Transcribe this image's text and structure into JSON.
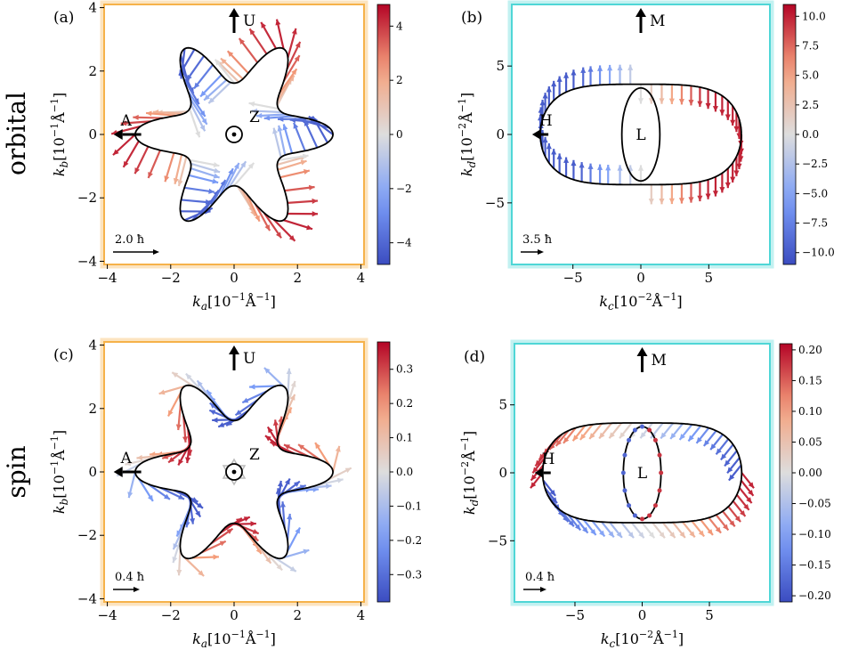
{
  "row_labels": [
    "orbital",
    "spin"
  ],
  "chart_data": [
    {
      "type": "scatter",
      "panel": "(a)",
      "frame_color": "#f6b24a",
      "xlabel_html": "k_a[10^{-1}Å^{-1}]",
      "xlabel_base": "k",
      "xlabel_sub": "a",
      "xlabel_unit": "[10",
      "xlabel_exp": "−1",
      "xlabel_tail": "Å",
      "xlabel_tail_exp": "−1",
      "xlabel_close": "]",
      "ylabel_base": "k",
      "ylabel_sub": "b",
      "ylabel_unit": "[10",
      "ylabel_exp": "−1",
      "ylabel_tail": "Å",
      "ylabel_tail_exp": "−1",
      "ylabel_close": "]",
      "xlim": [
        -4.1,
        4.1
      ],
      "ylim": [
        -4.1,
        4.1
      ],
      "xticks": [
        -4,
        -2,
        0,
        2,
        4
      ],
      "yticks": [
        -4,
        -2,
        0,
        2,
        4
      ],
      "xtick_labels": [
        "−4",
        "−2",
        "0",
        "2",
        "4"
      ],
      "ytick_labels": [
        "−4",
        "−2",
        "0",
        "2",
        "4"
      ],
      "curve": {
        "kind": "star",
        "r0": 2.25,
        "amp": 0.75,
        "lobes": 6
      },
      "center_symbol": "odot",
      "center_label": "Z",
      "up_label": "U",
      "left_label": "A",
      "scale_label": "2.0 ħ",
      "colorbar": {
        "min": -4.8,
        "max": 4.8,
        "ticks": [
          4,
          2,
          0,
          -2,
          -4
        ],
        "tick_labels": [
          "4",
          "2",
          "0",
          "−2",
          "−4"
        ]
      },
      "vector_mode": "orbital_star"
    },
    {
      "type": "scatter",
      "panel": "(b)",
      "frame_color": "#4fd6d6",
      "xlabel_base": "k",
      "xlabel_sub": "c",
      "xlabel_unit": "[10",
      "xlabel_exp": "−2",
      "xlabel_tail": "Å",
      "xlabel_tail_exp": "−1",
      "xlabel_close": "]",
      "ylabel_base": "k",
      "ylabel_sub": "d",
      "ylabel_unit": "[10",
      "ylabel_exp": "−2",
      "ylabel_tail": "Å",
      "ylabel_tail_exp": "−1",
      "ylabel_close": "]",
      "xlim": [
        -9.5,
        9.5
      ],
      "ylim": [
        -9.5,
        9.5
      ],
      "xticks": [
        -5,
        0,
        5
      ],
      "yticks": [
        -5,
        0,
        5
      ],
      "xtick_labels": [
        "−5",
        "0",
        "5"
      ],
      "ytick_labels": [
        "−5",
        "0",
        "5"
      ],
      "curve": {
        "kind": "peanut"
      },
      "inner_label": "L",
      "up_label": "M",
      "left_label": "H",
      "scale_label": "3.5 ħ",
      "colorbar": {
        "min": -11,
        "max": 11,
        "ticks": [
          10,
          7.5,
          5,
          2.5,
          0,
          -2.5,
          -5,
          -7.5,
          -10
        ],
        "tick_labels": [
          "10.0",
          "7.5",
          "5.0",
          "2.5",
          "0.0",
          "−2.5",
          "−5.0",
          "−7.5",
          "−10.0"
        ]
      },
      "vector_mode": "orbital_peanut"
    },
    {
      "type": "scatter",
      "panel": "(c)",
      "frame_color": "#f6b24a",
      "xlabel_base": "k",
      "xlabel_sub": "a",
      "xlabel_unit": "[10",
      "xlabel_exp": "−1",
      "xlabel_tail": "Å",
      "xlabel_tail_exp": "−1",
      "xlabel_close": "]",
      "ylabel_base": "k",
      "ylabel_sub": "b",
      "ylabel_unit": "[10",
      "ylabel_exp": "−1",
      "ylabel_tail": "Å",
      "ylabel_tail_exp": "−1",
      "ylabel_close": "]",
      "xlim": [
        -4.1,
        4.1
      ],
      "ylim": [
        -4.1,
        4.1
      ],
      "xticks": [
        -4,
        -2,
        0,
        2,
        4
      ],
      "yticks": [
        -4,
        -2,
        0,
        2,
        4
      ],
      "xtick_labels": [
        "−4",
        "−2",
        "0",
        "2",
        "4"
      ],
      "ytick_labels": [
        "−4",
        "−2",
        "0",
        "2",
        "4"
      ],
      "curve": {
        "kind": "star",
        "r0": 2.25,
        "amp": 0.75,
        "lobes": 6
      },
      "center_symbol": "odot",
      "center_label": "Z",
      "up_label": "U",
      "left_label": "A",
      "scale_label": "0.4 ħ",
      "colorbar": {
        "min": -0.38,
        "max": 0.38,
        "ticks": [
          0.3,
          0.2,
          0.1,
          0.0,
          -0.1,
          -0.2,
          -0.3
        ],
        "tick_labels": [
          "0.3",
          "0.2",
          "0.1",
          "0.0",
          "−0.1",
          "−0.2",
          "−0.3"
        ]
      },
      "vector_mode": "spin_star"
    },
    {
      "type": "scatter",
      "panel": "(d)",
      "frame_color": "#4fd6d6",
      "xlabel_base": "k",
      "xlabel_sub": "c",
      "xlabel_unit": "[10",
      "xlabel_exp": "−2",
      "xlabel_tail": "Å",
      "xlabel_tail_exp": "−1",
      "xlabel_close": "]",
      "ylabel_base": "k",
      "ylabel_sub": "d",
      "ylabel_unit": "[10",
      "ylabel_exp": "−2",
      "ylabel_tail": "Å",
      "ylabel_tail_exp": "−1",
      "ylabel_close": "]",
      "xlim": [
        -9.5,
        9.5
      ],
      "ylim": [
        -9.5,
        9.5
      ],
      "xticks": [
        -5,
        0,
        5
      ],
      "yticks": [
        -5,
        0,
        5
      ],
      "xtick_labels": [
        "−5",
        "0",
        "5"
      ],
      "ytick_labels": [
        "−5",
        "0",
        "5"
      ],
      "curve": {
        "kind": "peanut"
      },
      "inner_label": "L",
      "up_label": "M",
      "left_label": "H",
      "scale_label": "0.4 ħ",
      "colorbar": {
        "min": -0.21,
        "max": 0.21,
        "ticks": [
          0.2,
          0.15,
          0.1,
          0.05,
          0.0,
          -0.05,
          -0.1,
          -0.15,
          -0.2
        ],
        "tick_labels": [
          "0.20",
          "0.15",
          "0.10",
          "0.05",
          "0.00",
          "−0.05",
          "−0.10",
          "−0.15",
          "−0.20"
        ]
      },
      "vector_mode": "spin_peanut"
    }
  ]
}
